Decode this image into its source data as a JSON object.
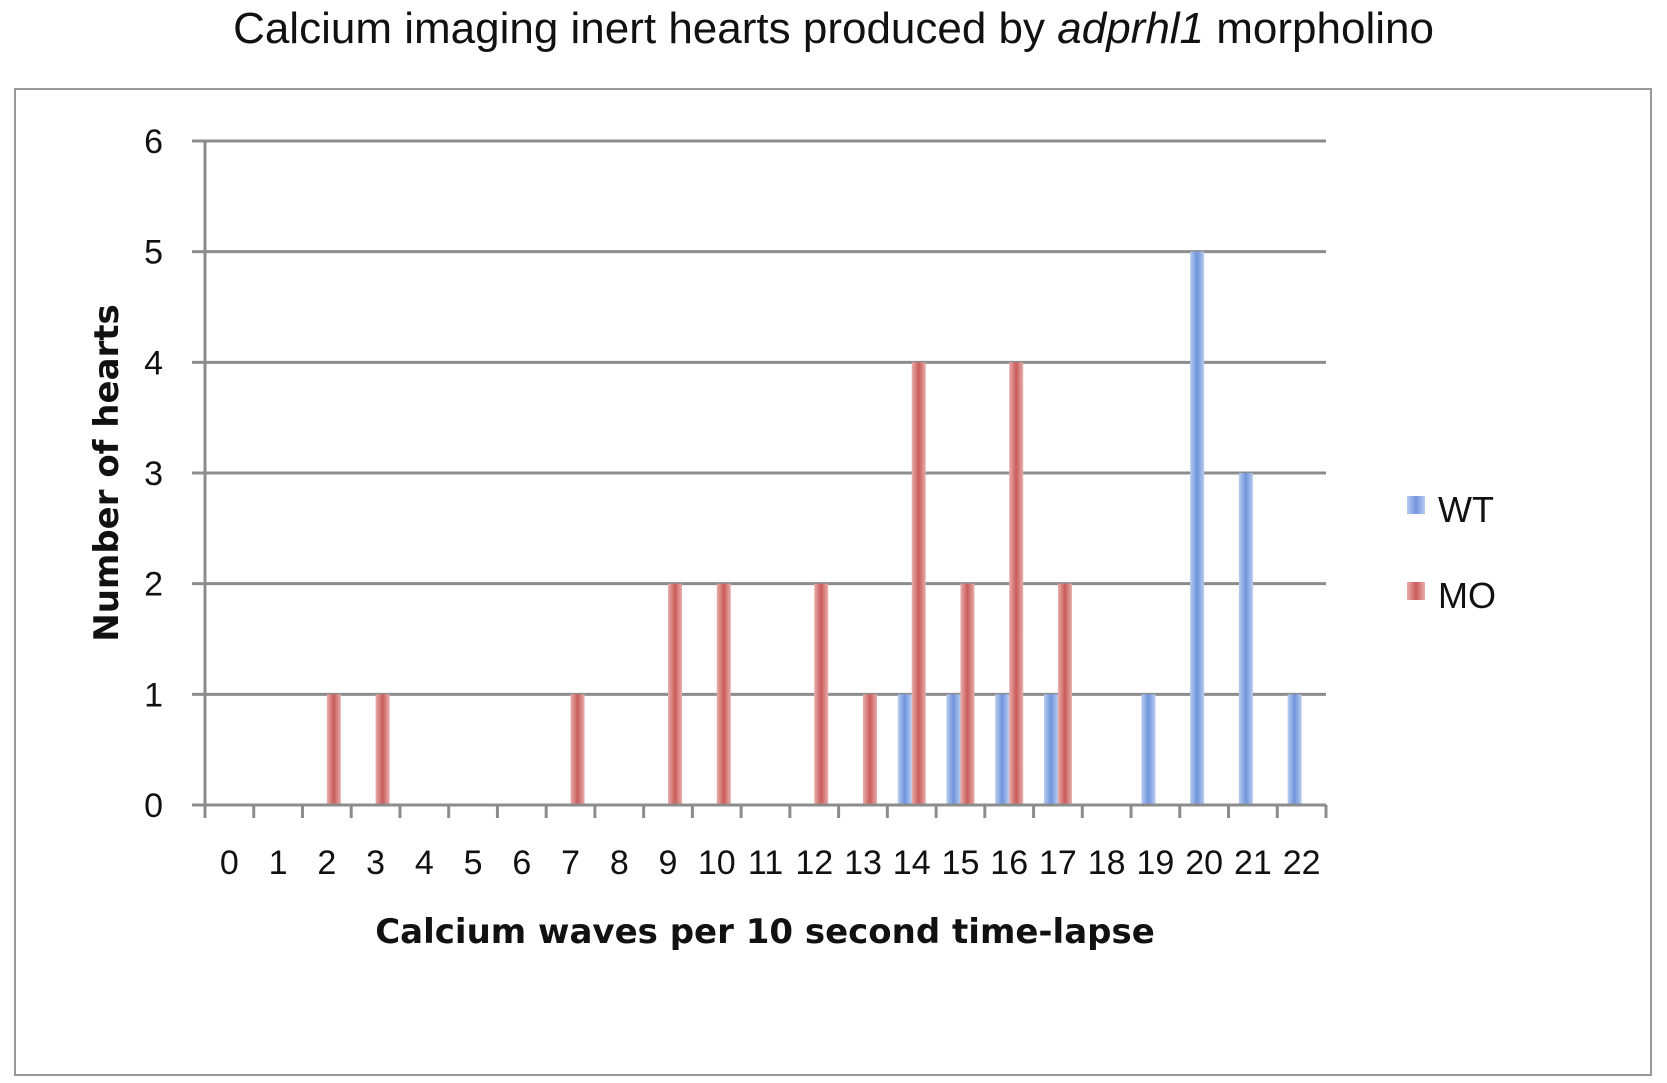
{
  "title": {
    "prefix": "Calcium imaging inert hearts produced by ",
    "italic": "adprhl1",
    "suffix": " morpholino"
  },
  "chart_data": {
    "type": "bar",
    "categories": [
      "0",
      "1",
      "2",
      "3",
      "4",
      "5",
      "6",
      "7",
      "8",
      "9",
      "10",
      "11",
      "12",
      "13",
      "14",
      "15",
      "16",
      "17",
      "18",
      "19",
      "20",
      "21",
      "22"
    ],
    "series": [
      {
        "name": "WT",
        "color": "#6f94dc",
        "values": [
          0,
          0,
          0,
          0,
          0,
          0,
          0,
          0,
          0,
          0,
          0,
          0,
          0,
          0,
          1,
          1,
          1,
          1,
          0,
          1,
          5,
          3,
          1
        ]
      },
      {
        "name": "MO",
        "color": "#c95c5a",
        "values": [
          0,
          0,
          1,
          1,
          0,
          0,
          0,
          1,
          0,
          2,
          2,
          0,
          2,
          1,
          4,
          2,
          4,
          2,
          0,
          0,
          0,
          0,
          0
        ]
      }
    ],
    "xlabel": "Calcium waves per 10 second time-lapse",
    "ylabel": "Number of hearts",
    "ylim": [
      0,
      6
    ],
    "yticks": [
      "0",
      "1",
      "2",
      "3",
      "4",
      "5",
      "6"
    ],
    "grid": true,
    "legend": "right"
  }
}
